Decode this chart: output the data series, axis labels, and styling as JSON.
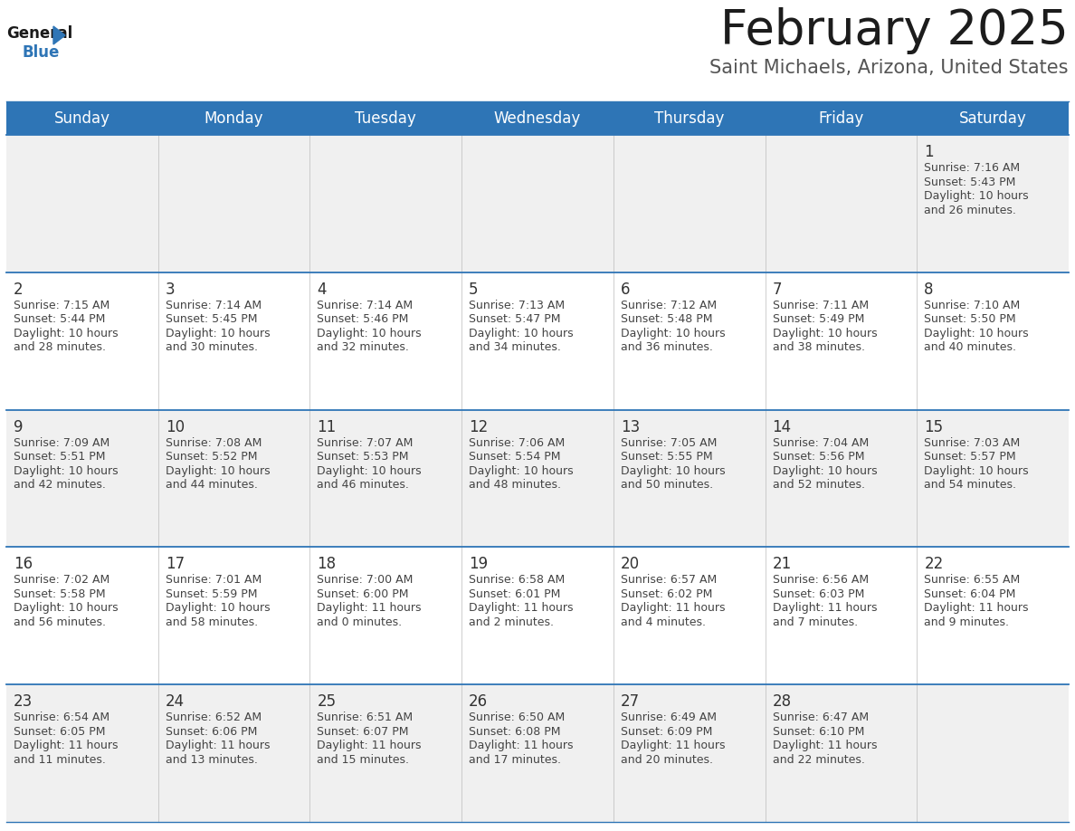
{
  "title": "February 2025",
  "subtitle": "Saint Michaels, Arizona, United States",
  "header_color": "#2E75B6",
  "header_text_color": "#FFFFFF",
  "day_names": [
    "Sunday",
    "Monday",
    "Tuesday",
    "Wednesday",
    "Thursday",
    "Friday",
    "Saturday"
  ],
  "bg_color": "#FFFFFF",
  "cell_bg_row0": "#F0F0F0",
  "cell_bg_row1": "#FFFFFF",
  "cell_bg_row2": "#F0F0F0",
  "cell_bg_row3": "#FFFFFF",
  "cell_bg_row4": "#F0F0F0",
  "divider_color": "#2E75B6",
  "text_color": "#444444",
  "day_num_color": "#333333",
  "calendar": [
    [
      null,
      null,
      null,
      null,
      null,
      null,
      {
        "day": "1",
        "line1": "Sunrise: 7:16 AM",
        "line2": "Sunset: 5:43 PM",
        "line3": "Daylight: 10 hours",
        "line4": "and 26 minutes."
      }
    ],
    [
      {
        "day": "2",
        "line1": "Sunrise: 7:15 AM",
        "line2": "Sunset: 5:44 PM",
        "line3": "Daylight: 10 hours",
        "line4": "and 28 minutes."
      },
      {
        "day": "3",
        "line1": "Sunrise: 7:14 AM",
        "line2": "Sunset: 5:45 PM",
        "line3": "Daylight: 10 hours",
        "line4": "and 30 minutes."
      },
      {
        "day": "4",
        "line1": "Sunrise: 7:14 AM",
        "line2": "Sunset: 5:46 PM",
        "line3": "Daylight: 10 hours",
        "line4": "and 32 minutes."
      },
      {
        "day": "5",
        "line1": "Sunrise: 7:13 AM",
        "line2": "Sunset: 5:47 PM",
        "line3": "Daylight: 10 hours",
        "line4": "and 34 minutes."
      },
      {
        "day": "6",
        "line1": "Sunrise: 7:12 AM",
        "line2": "Sunset: 5:48 PM",
        "line3": "Daylight: 10 hours",
        "line4": "and 36 minutes."
      },
      {
        "day": "7",
        "line1": "Sunrise: 7:11 AM",
        "line2": "Sunset: 5:49 PM",
        "line3": "Daylight: 10 hours",
        "line4": "and 38 minutes."
      },
      {
        "day": "8",
        "line1": "Sunrise: 7:10 AM",
        "line2": "Sunset: 5:50 PM",
        "line3": "Daylight: 10 hours",
        "line4": "and 40 minutes."
      }
    ],
    [
      {
        "day": "9",
        "line1": "Sunrise: 7:09 AM",
        "line2": "Sunset: 5:51 PM",
        "line3": "Daylight: 10 hours",
        "line4": "and 42 minutes."
      },
      {
        "day": "10",
        "line1": "Sunrise: 7:08 AM",
        "line2": "Sunset: 5:52 PM",
        "line3": "Daylight: 10 hours",
        "line4": "and 44 minutes."
      },
      {
        "day": "11",
        "line1": "Sunrise: 7:07 AM",
        "line2": "Sunset: 5:53 PM",
        "line3": "Daylight: 10 hours",
        "line4": "and 46 minutes."
      },
      {
        "day": "12",
        "line1": "Sunrise: 7:06 AM",
        "line2": "Sunset: 5:54 PM",
        "line3": "Daylight: 10 hours",
        "line4": "and 48 minutes."
      },
      {
        "day": "13",
        "line1": "Sunrise: 7:05 AM",
        "line2": "Sunset: 5:55 PM",
        "line3": "Daylight: 10 hours",
        "line4": "and 50 minutes."
      },
      {
        "day": "14",
        "line1": "Sunrise: 7:04 AM",
        "line2": "Sunset: 5:56 PM",
        "line3": "Daylight: 10 hours",
        "line4": "and 52 minutes."
      },
      {
        "day": "15",
        "line1": "Sunrise: 7:03 AM",
        "line2": "Sunset: 5:57 PM",
        "line3": "Daylight: 10 hours",
        "line4": "and 54 minutes."
      }
    ],
    [
      {
        "day": "16",
        "line1": "Sunrise: 7:02 AM",
        "line2": "Sunset: 5:58 PM",
        "line3": "Daylight: 10 hours",
        "line4": "and 56 minutes."
      },
      {
        "day": "17",
        "line1": "Sunrise: 7:01 AM",
        "line2": "Sunset: 5:59 PM",
        "line3": "Daylight: 10 hours",
        "line4": "and 58 minutes."
      },
      {
        "day": "18",
        "line1": "Sunrise: 7:00 AM",
        "line2": "Sunset: 6:00 PM",
        "line3": "Daylight: 11 hours",
        "line4": "and 0 minutes."
      },
      {
        "day": "19",
        "line1": "Sunrise: 6:58 AM",
        "line2": "Sunset: 6:01 PM",
        "line3": "Daylight: 11 hours",
        "line4": "and 2 minutes."
      },
      {
        "day": "20",
        "line1": "Sunrise: 6:57 AM",
        "line2": "Sunset: 6:02 PM",
        "line3": "Daylight: 11 hours",
        "line4": "and 4 minutes."
      },
      {
        "day": "21",
        "line1": "Sunrise: 6:56 AM",
        "line2": "Sunset: 6:03 PM",
        "line3": "Daylight: 11 hours",
        "line4": "and 7 minutes."
      },
      {
        "day": "22",
        "line1": "Sunrise: 6:55 AM",
        "line2": "Sunset: 6:04 PM",
        "line3": "Daylight: 11 hours",
        "line4": "and 9 minutes."
      }
    ],
    [
      {
        "day": "23",
        "line1": "Sunrise: 6:54 AM",
        "line2": "Sunset: 6:05 PM",
        "line3": "Daylight: 11 hours",
        "line4": "and 11 minutes."
      },
      {
        "day": "24",
        "line1": "Sunrise: 6:52 AM",
        "line2": "Sunset: 6:06 PM",
        "line3": "Daylight: 11 hours",
        "line4": "and 13 minutes."
      },
      {
        "day": "25",
        "line1": "Sunrise: 6:51 AM",
        "line2": "Sunset: 6:07 PM",
        "line3": "Daylight: 11 hours",
        "line4": "and 15 minutes."
      },
      {
        "day": "26",
        "line1": "Sunrise: 6:50 AM",
        "line2": "Sunset: 6:08 PM",
        "line3": "Daylight: 11 hours",
        "line4": "and 17 minutes."
      },
      {
        "day": "27",
        "line1": "Sunrise: 6:49 AM",
        "line2": "Sunset: 6:09 PM",
        "line3": "Daylight: 11 hours",
        "line4": "and 20 minutes."
      },
      {
        "day": "28",
        "line1": "Sunrise: 6:47 AM",
        "line2": "Sunset: 6:10 PM",
        "line3": "Daylight: 11 hours",
        "line4": "and 22 minutes."
      },
      null
    ]
  ],
  "logo_general_color": "#1a1a1a",
  "logo_blue_color": "#2E75B6",
  "logo_triangle_color": "#2E75B6",
  "title_fontsize": 38,
  "subtitle_fontsize": 15,
  "header_fontsize": 12,
  "day_num_fontsize": 12,
  "cell_text_fontsize": 9
}
